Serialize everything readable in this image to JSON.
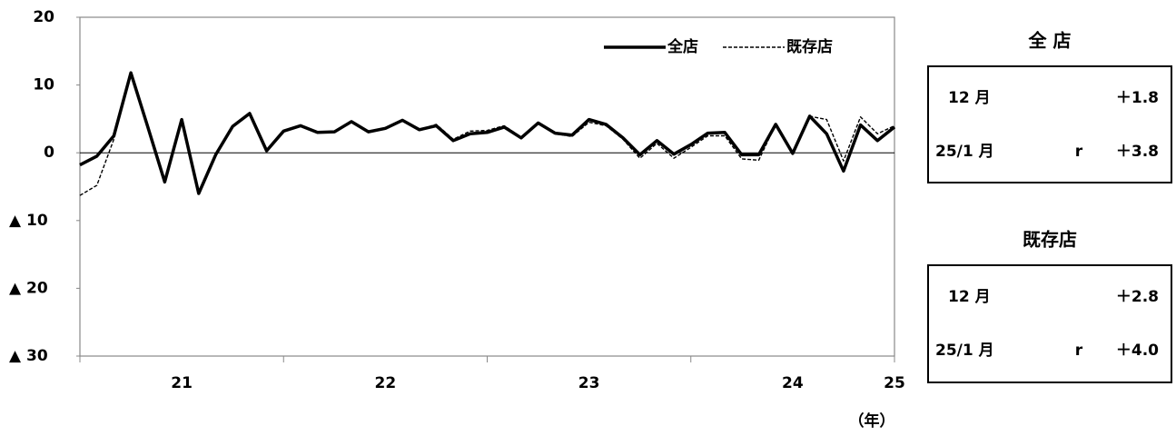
{
  "chart_data": {
    "type": "line",
    "categories": [
      null,
      null,
      null,
      null,
      null,
      null,
      "21",
      null,
      null,
      null,
      null,
      null,
      null,
      null,
      null,
      null,
      null,
      null,
      "22",
      null,
      null,
      null,
      null,
      null,
      null,
      null,
      null,
      null,
      null,
      null,
      "23",
      null,
      null,
      null,
      null,
      null,
      null,
      null,
      null,
      null,
      null,
      null,
      "24",
      null,
      null,
      null,
      null,
      null,
      "25"
    ],
    "x_label": "（年）",
    "series": [
      {
        "name": "全店",
        "color": "#000000",
        "style": "solid",
        "values": [
          -1.8,
          -0.5,
          2.5,
          11.8,
          3.8,
          -4.3,
          4.9,
          -6,
          -0.3,
          3.9,
          5.8,
          0.3,
          3.2,
          4.0,
          3.0,
          3.1,
          4.6,
          3.1,
          3.6,
          4.8,
          3.4,
          4.0,
          1.8,
          2.8,
          3.0,
          3.8,
          2.2,
          4.4,
          2.9,
          2.6,
          4.9,
          4.2,
          2.2,
          -0.3,
          1.8,
          -0.2,
          1.2,
          2.9,
          3.0,
          -0.3,
          -0.3,
          4.2,
          -0.1,
          5.4,
          2.8,
          -2.7,
          4.1,
          1.8,
          3.8
        ]
      },
      {
        "name": "既存店",
        "color": "#000000",
        "style": "dashed",
        "values": [
          -6.3,
          -4.8,
          2.0,
          11.8,
          3.8,
          -4.3,
          4.9,
          -6,
          -0.3,
          3.9,
          5.8,
          0.3,
          3.2,
          4.0,
          3.0,
          3.1,
          4.6,
          3.1,
          3.6,
          4.8,
          3.4,
          4.2,
          2.0,
          3.2,
          3.3,
          4.0,
          2.3,
          4.3,
          2.8,
          2.4,
          4.5,
          4.0,
          2.0,
          -0.8,
          1.4,
          -0.8,
          0.8,
          2.5,
          2.5,
          -0.9,
          -1.1,
          4.2,
          -0.1,
          5.4,
          4.9,
          -1.2,
          5.3,
          2.8,
          4.0
        ]
      }
    ],
    "ylim": [
      -30,
      20
    ],
    "yticks": [
      20,
      10,
      0,
      {
        "value": -10,
        "label": "▲ 10"
      },
      {
        "value": -20,
        "label": "▲ 20"
      },
      {
        "value": -30,
        "label": "▲ 30"
      }
    ],
    "zero_line": true,
    "legend": "top-right"
  },
  "panels": [
    {
      "title": "全 店",
      "rows": [
        {
          "month": "12 月",
          "value": "＋1.8"
        },
        {
          "month": "25/1 月",
          "mark": "r",
          "value": "＋3.8"
        }
      ]
    },
    {
      "title": "既存店",
      "rows": [
        {
          "month": "12 月",
          "value": "＋2.8"
        },
        {
          "month": "25/1 月",
          "mark": "r",
          "value": "＋4.0"
        }
      ]
    }
  ]
}
